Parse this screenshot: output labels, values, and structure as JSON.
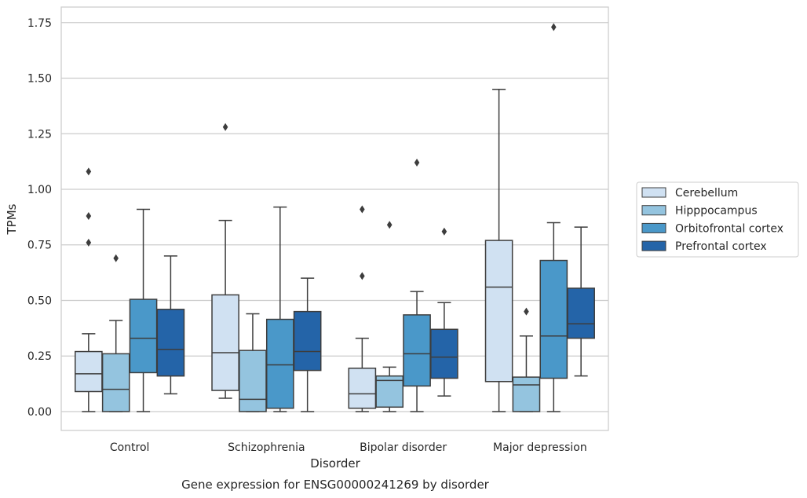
{
  "chart_data": {
    "type": "box",
    "title": "",
    "caption": "Gene expression for ENSG00000241269 by disorder",
    "xlabel": "Disorder",
    "ylabel": "TPMs",
    "ylim": [
      -0.085,
      1.82
    ],
    "yticks": [
      0.0,
      0.25,
      0.5,
      0.75,
      1.0,
      1.25,
      1.5,
      1.75
    ],
    "ytick_labels": [
      "0.00",
      "0.25",
      "0.50",
      "0.75",
      "1.00",
      "1.25",
      "1.50",
      "1.75"
    ],
    "categories": [
      "Control",
      "Schizophrenia",
      "Bipolar disorder",
      "Major depression"
    ],
    "grid": "horizontal",
    "legend_position": "outside-right",
    "series": [
      {
        "name": "Cerebellum",
        "color": "#d0e1f2",
        "boxes": [
          {
            "whislo": 0.0,
            "q1": 0.09,
            "med": 0.17,
            "q3": 0.27,
            "whishi": 0.35,
            "fliers": [
              0.76,
              0.88,
              1.08
            ]
          },
          {
            "whislo": 0.06,
            "q1": 0.095,
            "med": 0.265,
            "q3": 0.525,
            "whishi": 0.86,
            "fliers": [
              1.28
            ]
          },
          {
            "whislo": 0.0,
            "q1": 0.015,
            "med": 0.08,
            "q3": 0.195,
            "whishi": 0.33,
            "fliers": [
              0.61,
              0.91
            ]
          },
          {
            "whislo": 0.0,
            "q1": 0.135,
            "med": 0.56,
            "q3": 0.77,
            "whishi": 1.45,
            "fliers": []
          }
        ]
      },
      {
        "name": "Hipppocampus",
        "color": "#94c4df",
        "boxes": [
          {
            "whislo": 0.0,
            "q1": 0.0,
            "med": 0.1,
            "q3": 0.26,
            "whishi": 0.41,
            "fliers": [
              0.69
            ]
          },
          {
            "whislo": 0.0,
            "q1": 0.0,
            "med": 0.055,
            "q3": 0.275,
            "whishi": 0.44,
            "fliers": []
          },
          {
            "whislo": 0.0,
            "q1": 0.02,
            "med": 0.14,
            "q3": 0.16,
            "whishi": 0.2,
            "fliers": [
              0.84
            ]
          },
          {
            "whislo": 0.0,
            "q1": 0.0,
            "med": 0.12,
            "q3": 0.155,
            "whishi": 0.34,
            "fliers": [
              0.45
            ]
          }
        ]
      },
      {
        "name": "Orbitofrontal cortex",
        "color": "#4a98c9",
        "boxes": [
          {
            "whislo": 0.0,
            "q1": 0.175,
            "med": 0.33,
            "q3": 0.505,
            "whishi": 0.91,
            "fliers": []
          },
          {
            "whislo": 0.0,
            "q1": 0.015,
            "med": 0.21,
            "q3": 0.415,
            "whishi": 0.92,
            "fliers": []
          },
          {
            "whislo": 0.0,
            "q1": 0.115,
            "med": 0.26,
            "q3": 0.435,
            "whishi": 0.54,
            "fliers": [
              1.12
            ]
          },
          {
            "whislo": 0.0,
            "q1": 0.15,
            "med": 0.34,
            "q3": 0.68,
            "whishi": 0.85,
            "fliers": [
              1.73
            ]
          }
        ]
      },
      {
        "name": "Prefrontal cortex",
        "color": "#2464a8",
        "boxes": [
          {
            "whislo": 0.08,
            "q1": 0.16,
            "med": 0.28,
            "q3": 0.46,
            "whishi": 0.7,
            "fliers": []
          },
          {
            "whislo": 0.0,
            "q1": 0.185,
            "med": 0.27,
            "q3": 0.45,
            "whishi": 0.6,
            "fliers": []
          },
          {
            "whislo": 0.07,
            "q1": 0.15,
            "med": 0.245,
            "q3": 0.37,
            "whishi": 0.49,
            "fliers": [
              0.81
            ]
          },
          {
            "whislo": 0.16,
            "q1": 0.33,
            "med": 0.395,
            "q3": 0.555,
            "whishi": 0.83,
            "fliers": []
          }
        ]
      }
    ]
  }
}
